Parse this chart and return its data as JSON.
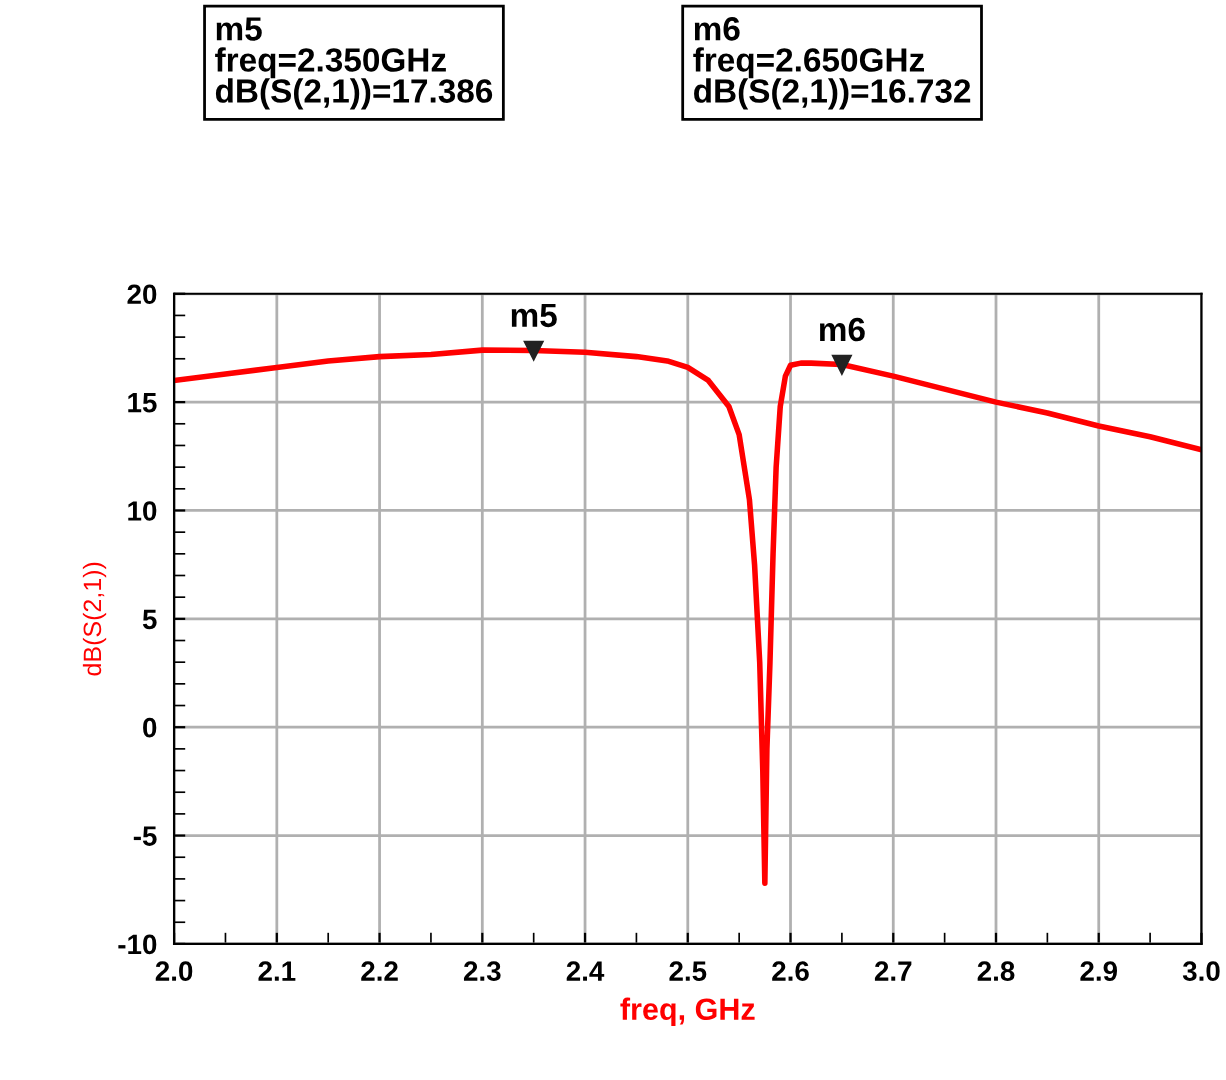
{
  "chart_data": {
    "type": "line",
    "xlabel": "freq, GHz",
    "ylabel": "dB(S(2,1))",
    "x": [
      2.0,
      2.05,
      2.1,
      2.15,
      2.2,
      2.25,
      2.3,
      2.35,
      2.4,
      2.45,
      2.48,
      2.5,
      2.52,
      2.54,
      2.55,
      2.56,
      2.565,
      2.57,
      2.573,
      2.575,
      2.577,
      2.58,
      2.583,
      2.586,
      2.59,
      2.595,
      2.6,
      2.61,
      2.62,
      2.65,
      2.7,
      2.75,
      2.8,
      2.85,
      2.9,
      2.95,
      3.0
    ],
    "series": [
      {
        "color": "#ff0000",
        "values": [
          16.0,
          16.3,
          16.6,
          16.9,
          17.1,
          17.2,
          17.4,
          17.386,
          17.3,
          17.1,
          16.9,
          16.6,
          16.0,
          14.8,
          13.5,
          10.5,
          7.5,
          3.0,
          -2.0,
          -7.2,
          -1.0,
          3.0,
          8.0,
          12.0,
          14.8,
          16.2,
          16.7,
          16.8,
          16.8,
          16.732,
          16.2,
          15.6,
          15.0,
          14.5,
          13.9,
          13.4,
          12.8
        ]
      }
    ],
    "xlim": [
      2.0,
      3.0
    ],
    "xticks": [
      {
        "value": 2,
        "label": "2.0"
      },
      2.1,
      2.2,
      2.3,
      2.4,
      2.5,
      2.6,
      2.7,
      2.8,
      2.9,
      {
        "value": 3,
        "label": "3.0"
      }
    ],
    "ylim": [
      -10,
      20
    ],
    "yticks": [
      -10,
      -5,
      0,
      5,
      10,
      15,
      20
    ],
    "grid": true,
    "legend": false,
    "annotations": [
      {
        "text": "m5",
        "x": 2.35,
        "y": 17.386
      },
      {
        "text": "m6",
        "x": 2.65,
        "y": 16.732
      },
      "m5\nfreq=2.350GHz\ndB(S(2,1))=17.386",
      "m6\nfreq=2.650GHz\ndB(S(2,1))=16.732"
    ]
  }
}
